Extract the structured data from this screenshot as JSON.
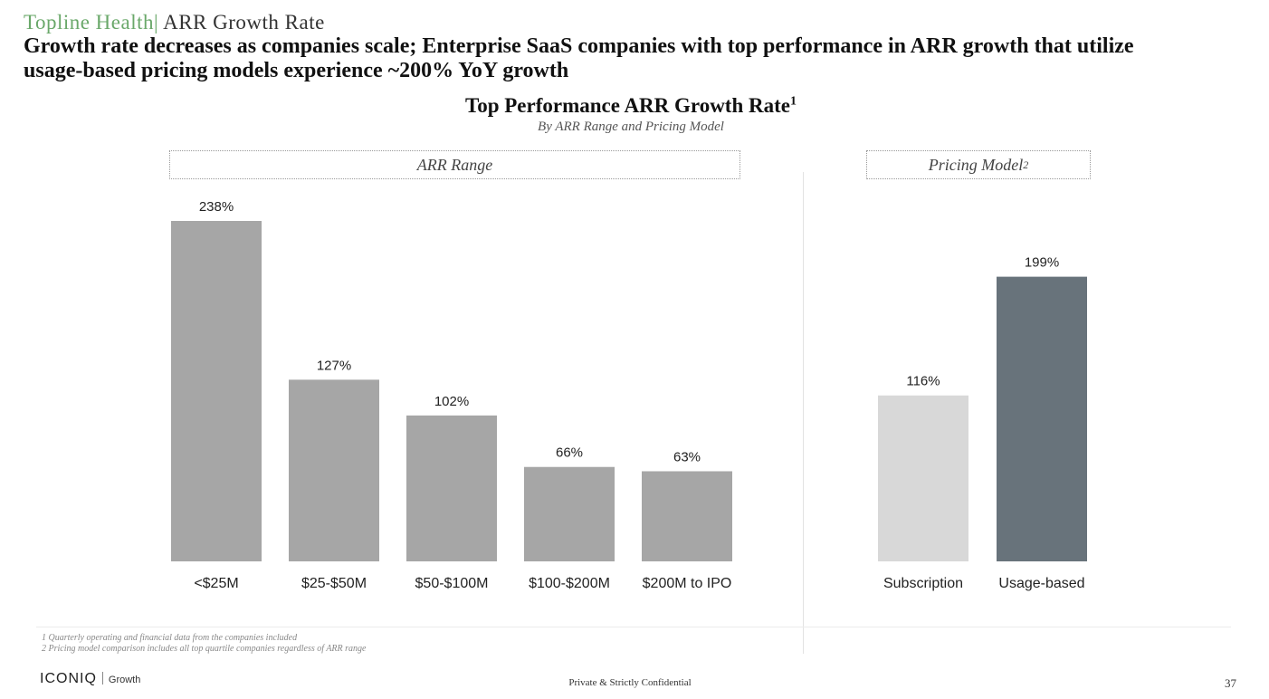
{
  "header": {
    "section": "Topline Health",
    "separator": "|",
    "title": "ARR Growth Rate"
  },
  "headline": "Growth rate decreases as companies scale; Enterprise SaaS companies with top performance in ARR growth that utilize usage-based pricing models experience ~200% YoY growth",
  "chart_data": [
    {
      "type": "bar",
      "title": "Top Performance ARR Growth Rate",
      "title_footnote": "1",
      "subtitle": "By ARR Range and Pricing Model",
      "group_label": "ARR Range",
      "categories": [
        "<$25M",
        "$25-$50M",
        "$50-$100M",
        "$100-$200M",
        "$200M to IPO"
      ],
      "values": [
        238,
        127,
        102,
        66,
        63
      ],
      "value_labels": [
        "238%",
        "127%",
        "102%",
        "66%",
        "63%"
      ],
      "colors": [
        "#a6a6a6",
        "#a6a6a6",
        "#a6a6a6",
        "#a6a6a6",
        "#a6a6a6"
      ],
      "ylim": [
        0,
        250
      ],
      "grid": false
    },
    {
      "type": "bar",
      "group_label": "Pricing Model",
      "group_label_footnote": "2",
      "categories": [
        "Subscription",
        "Usage-based"
      ],
      "values": [
        116,
        199
      ],
      "value_labels": [
        "116%",
        "199%"
      ],
      "colors": [
        "#d8d8d8",
        "#68737b"
      ],
      "ylim": [
        0,
        250
      ],
      "grid": false
    }
  ],
  "footnotes": [
    "1 Quarterly operating and financial data from the companies included",
    "2 Pricing model comparison includes all top quartile companies regardless of ARR range"
  ],
  "footer": {
    "logo": "ICONIQ",
    "logo_sub": "Growth",
    "confidential": "Private & Strictly Confidential",
    "page_number": "37"
  }
}
